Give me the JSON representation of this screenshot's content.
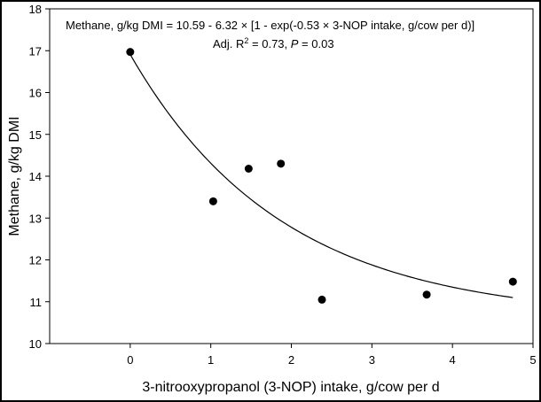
{
  "chart_data": {
    "type": "scatter",
    "title": "",
    "xlabel": "3-nitrooxypropanol (3-NOP) intake, g/cow per d",
    "ylabel": "Methane, g/kg DMI",
    "xlim": [
      -1,
      5
    ],
    "ylim": [
      10,
      18
    ],
    "xticks": [
      0,
      1,
      2,
      3,
      4,
      5
    ],
    "yticks": [
      10,
      11,
      12,
      13,
      14,
      15,
      16,
      17,
      18
    ],
    "grid": false,
    "series": [
      {
        "name": "observed",
        "kind": "scatter",
        "x": [
          0,
          1.03,
          1.47,
          1.87,
          2.38,
          3.68,
          4.75
        ],
        "y": [
          16.97,
          13.4,
          14.18,
          14.3,
          11.05,
          11.17,
          11.48
        ]
      },
      {
        "name": "fitted",
        "kind": "line",
        "model": "exponential",
        "a": 10.59,
        "b": 6.32,
        "c": 0.53,
        "xrange": [
          0,
          4.75
        ]
      }
    ],
    "annotations": {
      "equation": "Methane, g/kg DMI = 10.59 - 6.32 × [1 - exp(-0.53 × 3-NOP intake, g/cow per d)]",
      "adj_r2_label": "Adj. R",
      "r2_superscript": "2",
      "adj_r2_value": " = 0.73, ",
      "p_symbol": "P",
      "p_value": " = 0.03"
    }
  },
  "colors": {
    "marker": "#000000",
    "line": "#000000",
    "background": "#ffffff"
  }
}
